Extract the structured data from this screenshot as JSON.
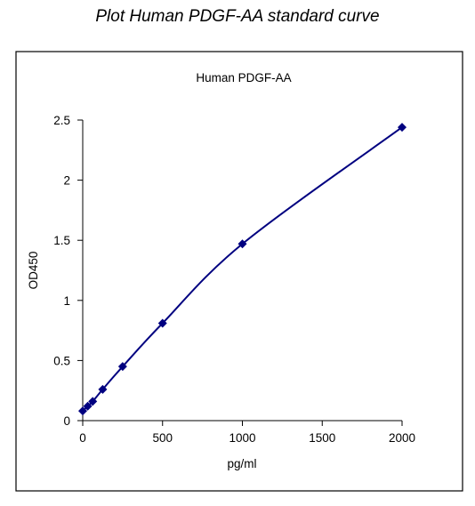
{
  "page": {
    "title": "Plot Human PDGF-AA standard curve"
  },
  "chart_data": {
    "type": "scatter",
    "title": "Human PDGF-AA",
    "xlabel": "pg/ml",
    "ylabel": "OD450",
    "xlim": [
      0,
      2000
    ],
    "ylim": [
      0,
      2.5
    ],
    "x_ticks": [
      0,
      500,
      1000,
      1500,
      2000
    ],
    "y_ticks": [
      0,
      0.5,
      1,
      1.5,
      2,
      2.5
    ],
    "x_tick_labels": [
      "0",
      "500",
      "1000",
      "1500",
      "2000"
    ],
    "y_tick_labels": [
      "0",
      "0.5",
      "1",
      "1.5",
      "2",
      "2.5"
    ],
    "grid": false,
    "legend": "none",
    "series": [
      {
        "color": "#000080",
        "marker": "diamond",
        "smooth_line": true,
        "x": [
          0,
          31.25,
          62.5,
          125,
          250,
          500,
          1000,
          2000
        ],
        "y": [
          0.08,
          0.12,
          0.16,
          0.26,
          0.45,
          0.81,
          1.47,
          2.44
        ]
      }
    ]
  }
}
